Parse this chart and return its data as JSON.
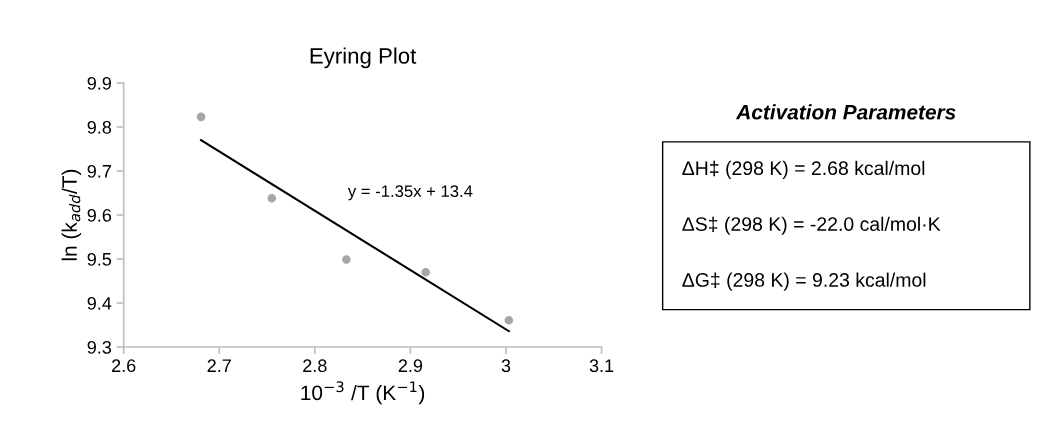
{
  "chart_data": [
    {
      "type": "scatter",
      "title": "Eyring Plot",
      "xlabel": "10$^{−3}$ /T (K$^{−1}$)",
      "ylabel": "ln (k$_{add}$/T)",
      "series": [
        {
          "type": "scatter",
          "color": "#a6a6a6",
          "x": [
            2.681,
            2.755,
            2.833,
            2.916,
            3.003
          ],
          "values": [
            9.823,
            9.638,
            9.499,
            9.47,
            9.361
          ],
          "marker": "circle"
        },
        {
          "type": "line",
          "color": "#000000",
          "x": [
            2.681,
            3.003
          ],
          "values": [
            9.77,
            9.336
          ],
          "marker": "none"
        }
      ],
      "annotations": [
        "y = -1.35x + 13.4"
      ],
      "xlim": [
        2.6,
        3.1
      ],
      "xticks": [
        2.6,
        2.7,
        2.8,
        2.9,
        3,
        3.1
      ],
      "ylim": [
        9.3,
        9.9
      ],
      "yticks": [
        9.3,
        9.4,
        9.5,
        9.6,
        9.7,
        9.8,
        9.9
      ],
      "grid": false,
      "legend": false
    },
    {
      "type": "other",
      "title": "Activation Parameters",
      "annotations": [
        "ΔH‡ (298 K) = 2.68 kcal/mol",
        "ΔS‡ (298 K) = -22.0 cal/mol·K",
        "ΔG‡ (298 K) = 9.23 kcal/mol"
      ]
    }
  ]
}
